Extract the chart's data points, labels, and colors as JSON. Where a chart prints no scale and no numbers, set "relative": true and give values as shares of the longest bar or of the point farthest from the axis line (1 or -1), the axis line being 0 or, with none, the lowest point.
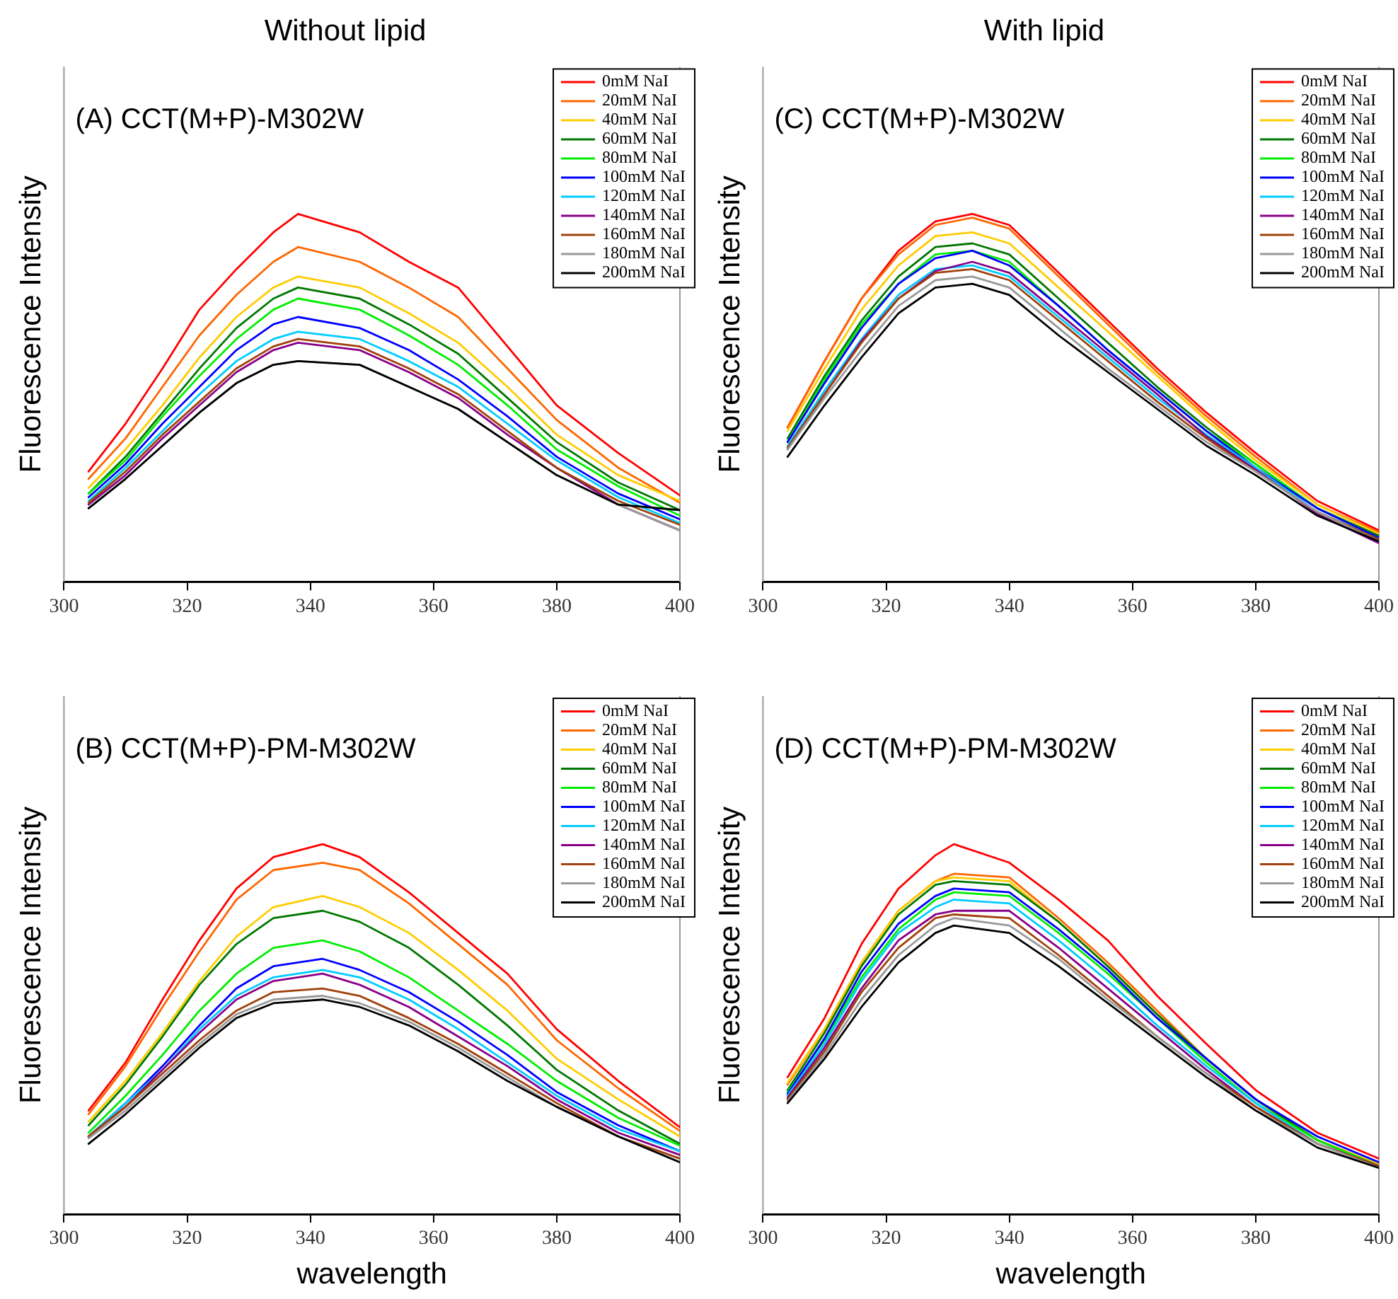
{
  "chart_data": [
    {
      "type": "line",
      "title": "Without lipid",
      "ylabel": "Fluorescence Intensity",
      "annotations": [
        "(A) CCT(M+P)-M302W"
      ],
      "relative": true,
      "tick_labels": "x",
      "legend": "top right",
      "xlim": [
        300,
        400
      ],
      "xticks": [
        300,
        320,
        340,
        360,
        380,
        400
      ],
      "x": [
        304,
        310,
        316,
        322,
        328,
        334,
        338,
        348,
        356,
        364,
        372,
        380,
        390,
        400
      ],
      "series": [
        {
          "name": "0mM NaI",
          "color": "#ff0000",
          "values": [
            0.3,
            0.43,
            0.58,
            0.74,
            0.85,
            0.95,
            1.0,
            0.95,
            0.87,
            0.8,
            0.64,
            0.48,
            0.35,
            0.235
          ]
        },
        {
          "name": "20mM NaI",
          "color": "#ff6600",
          "values": [
            0.28,
            0.39,
            0.53,
            0.67,
            0.78,
            0.87,
            0.91,
            0.87,
            0.8,
            0.72,
            0.58,
            0.44,
            0.31,
            0.215
          ]
        },
        {
          "name": "40mM NaI",
          "color": "#ffcc00",
          "values": [
            0.255,
            0.36,
            0.48,
            0.61,
            0.72,
            0.8,
            0.83,
            0.8,
            0.73,
            0.65,
            0.53,
            0.4,
            0.29,
            0.22
          ]
        },
        {
          "name": "60mM NaI",
          "color": "#007700",
          "values": [
            0.24,
            0.34,
            0.46,
            0.58,
            0.69,
            0.77,
            0.8,
            0.77,
            0.7,
            0.62,
            0.5,
            0.38,
            0.27,
            0.195
          ]
        },
        {
          "name": "80mM NaI",
          "color": "#00ee00",
          "values": [
            0.24,
            0.33,
            0.45,
            0.56,
            0.66,
            0.74,
            0.77,
            0.74,
            0.67,
            0.59,
            0.48,
            0.36,
            0.26,
            0.18
          ]
        },
        {
          "name": "100mM NaI",
          "color": "#0000ff",
          "values": [
            0.23,
            0.32,
            0.43,
            0.53,
            0.63,
            0.7,
            0.72,
            0.69,
            0.63,
            0.55,
            0.45,
            0.34,
            0.24,
            0.17
          ]
        },
        {
          "name": "120mM NaI",
          "color": "#00ccff",
          "values": [
            0.22,
            0.31,
            0.41,
            0.51,
            0.6,
            0.66,
            0.68,
            0.66,
            0.6,
            0.53,
            0.43,
            0.33,
            0.23,
            0.16
          ]
        },
        {
          "name": "140mM NaI",
          "color": "#880088",
          "values": [
            0.21,
            0.29,
            0.39,
            0.48,
            0.57,
            0.63,
            0.65,
            0.63,
            0.57,
            0.5,
            0.4,
            0.31,
            0.21,
            0.14
          ]
        },
        {
          "name": "160mM NaI",
          "color": "#a0400a",
          "values": [
            0.215,
            0.3,
            0.4,
            0.49,
            0.58,
            0.64,
            0.66,
            0.64,
            0.58,
            0.51,
            0.41,
            0.31,
            0.22,
            0.155
          ]
        },
        {
          "name": "180mM NaI",
          "color": "#999999",
          "values": [
            0.2,
            0.28,
            0.37,
            0.46,
            0.54,
            0.59,
            0.6,
            0.59,
            0.53,
            0.47,
            0.38,
            0.29,
            0.21,
            0.14
          ]
        },
        {
          "name": "200mM NaI",
          "color": "#000000",
          "values": [
            0.2,
            0.28,
            0.37,
            0.46,
            0.54,
            0.59,
            0.6,
            0.59,
            0.53,
            0.47,
            0.38,
            0.29,
            0.21,
            0.195
          ]
        }
      ]
    },
    {
      "type": "line",
      "title": "With lipid",
      "ylabel": "Fluorescence Intensity",
      "annotations": [
        "(C) CCT(M+P)-M302W"
      ],
      "relative": true,
      "tick_labels": "x",
      "legend": "top right",
      "xlim": [
        300,
        400
      ],
      "xticks": [
        300,
        320,
        340,
        360,
        380,
        400
      ],
      "x": [
        304,
        310,
        316,
        322,
        328,
        334,
        340,
        348,
        356,
        364,
        372,
        380,
        390,
        400
      ],
      "series": [
        {
          "name": "0mM NaI",
          "color": "#ff0000",
          "values": [
            0.42,
            0.6,
            0.77,
            0.9,
            0.98,
            1.0,
            0.97,
            0.84,
            0.71,
            0.58,
            0.46,
            0.35,
            0.22,
            0.14
          ]
        },
        {
          "name": "20mM NaI",
          "color": "#ff6600",
          "values": [
            0.42,
            0.6,
            0.77,
            0.89,
            0.97,
            0.99,
            0.96,
            0.83,
            0.7,
            0.57,
            0.45,
            0.34,
            0.21,
            0.135
          ]
        },
        {
          "name": "40mM NaI",
          "color": "#ffcc00",
          "values": [
            0.41,
            0.58,
            0.74,
            0.86,
            0.94,
            0.95,
            0.92,
            0.8,
            0.68,
            0.56,
            0.44,
            0.33,
            0.21,
            0.13
          ]
        },
        {
          "name": "60mM NaI",
          "color": "#007700",
          "values": [
            0.39,
            0.56,
            0.71,
            0.83,
            0.91,
            0.92,
            0.89,
            0.77,
            0.65,
            0.53,
            0.42,
            0.32,
            0.2,
            0.125
          ]
        },
        {
          "name": "80mM NaI",
          "color": "#00ee00",
          "values": [
            0.38,
            0.55,
            0.7,
            0.81,
            0.89,
            0.9,
            0.87,
            0.75,
            0.63,
            0.52,
            0.41,
            0.32,
            0.2,
            0.12
          ]
        },
        {
          "name": "100mM NaI",
          "color": "#0000ff",
          "values": [
            0.38,
            0.54,
            0.69,
            0.81,
            0.88,
            0.9,
            0.86,
            0.75,
            0.63,
            0.52,
            0.41,
            0.31,
            0.2,
            0.12
          ]
        },
        {
          "name": "120mM NaI",
          "color": "#00ccff",
          "values": [
            0.37,
            0.52,
            0.66,
            0.78,
            0.85,
            0.86,
            0.83,
            0.72,
            0.61,
            0.5,
            0.4,
            0.31,
            0.19,
            0.115
          ]
        },
        {
          "name": "140mM NaI",
          "color": "#880088",
          "values": [
            0.36,
            0.51,
            0.655,
            0.77,
            0.845,
            0.87,
            0.84,
            0.73,
            0.62,
            0.51,
            0.395,
            0.305,
            0.185,
            0.105
          ]
        },
        {
          "name": "160mM NaI",
          "color": "#a0400a",
          "values": [
            0.365,
            0.51,
            0.65,
            0.77,
            0.84,
            0.85,
            0.82,
            0.71,
            0.6,
            0.49,
            0.39,
            0.3,
            0.19,
            0.115
          ]
        },
        {
          "name": "180mM NaI",
          "color": "#999999",
          "values": [
            0.36,
            0.5,
            0.63,
            0.75,
            0.82,
            0.83,
            0.8,
            0.69,
            0.58,
            0.48,
            0.38,
            0.3,
            0.19,
            0.11
          ]
        },
        {
          "name": "200mM NaI",
          "color": "#000000",
          "values": [
            0.34,
            0.48,
            0.61,
            0.73,
            0.8,
            0.81,
            0.78,
            0.67,
            0.57,
            0.47,
            0.37,
            0.29,
            0.18,
            0.11
          ]
        }
      ]
    },
    {
      "type": "line",
      "xlabel": "wavelength",
      "ylabel": "Fluorescence Intensity",
      "annotations": [
        "(B) CCT(M+P)-PM-M302W"
      ],
      "relative": true,
      "tick_labels": "x",
      "legend": "top right",
      "xlim": [
        300,
        400
      ],
      "xticks": [
        300,
        320,
        340,
        360,
        380,
        400
      ],
      "x": [
        304,
        310,
        316,
        322,
        328,
        334,
        342,
        348,
        356,
        364,
        372,
        380,
        390,
        400
      ],
      "series": [
        {
          "name": "0mM NaI",
          "color": "#ff0000",
          "values": [
            0.28,
            0.41,
            0.58,
            0.74,
            0.88,
            0.965,
            1.0,
            0.965,
            0.87,
            0.76,
            0.65,
            0.5,
            0.36,
            0.235
          ]
        },
        {
          "name": "20mM NaI",
          "color": "#ff6600",
          "values": [
            0.27,
            0.4,
            0.56,
            0.71,
            0.85,
            0.93,
            0.95,
            0.93,
            0.84,
            0.73,
            0.62,
            0.47,
            0.34,
            0.225
          ]
        },
        {
          "name": "40mM NaI",
          "color": "#ffcc00",
          "values": [
            0.25,
            0.36,
            0.49,
            0.63,
            0.75,
            0.83,
            0.86,
            0.83,
            0.76,
            0.66,
            0.55,
            0.42,
            0.31,
            0.21
          ]
        },
        {
          "name": "60mM NaI",
          "color": "#007700",
          "values": [
            0.24,
            0.35,
            0.48,
            0.62,
            0.73,
            0.8,
            0.82,
            0.79,
            0.72,
            0.62,
            0.51,
            0.39,
            0.28,
            0.19
          ]
        },
        {
          "name": "80mM NaI",
          "color": "#00ee00",
          "values": [
            0.22,
            0.32,
            0.43,
            0.55,
            0.65,
            0.72,
            0.74,
            0.71,
            0.64,
            0.55,
            0.46,
            0.36,
            0.26,
            0.185
          ]
        },
        {
          "name": "100mM NaI",
          "color": "#0000ff",
          "values": [
            0.21,
            0.3,
            0.4,
            0.51,
            0.61,
            0.67,
            0.69,
            0.66,
            0.6,
            0.52,
            0.43,
            0.33,
            0.24,
            0.17
          ]
        },
        {
          "name": "120mM NaI",
          "color": "#00ccff",
          "values": [
            0.21,
            0.3,
            0.39,
            0.5,
            0.59,
            0.64,
            0.66,
            0.64,
            0.58,
            0.5,
            0.41,
            0.32,
            0.23,
            0.17
          ]
        },
        {
          "name": "140mM NaI",
          "color": "#880088",
          "values": [
            0.21,
            0.29,
            0.39,
            0.49,
            0.58,
            0.63,
            0.65,
            0.62,
            0.56,
            0.48,
            0.4,
            0.31,
            0.22,
            0.16
          ]
        },
        {
          "name": "160mM NaI",
          "color": "#a0400a",
          "values": [
            0.21,
            0.29,
            0.38,
            0.47,
            0.55,
            0.6,
            0.61,
            0.59,
            0.53,
            0.46,
            0.38,
            0.3,
            0.21,
            0.15
          ]
        },
        {
          "name": "180mM NaI",
          "color": "#999999",
          "values": [
            0.205,
            0.28,
            0.37,
            0.46,
            0.54,
            0.58,
            0.59,
            0.57,
            0.52,
            0.45,
            0.37,
            0.29,
            0.21,
            0.14
          ]
        },
        {
          "name": "200mM NaI",
          "color": "#000000",
          "values": [
            0.19,
            0.27,
            0.36,
            0.45,
            0.53,
            0.57,
            0.58,
            0.56,
            0.51,
            0.44,
            0.36,
            0.29,
            0.21,
            0.14
          ]
        }
      ]
    },
    {
      "type": "line",
      "xlabel": "wavelength",
      "ylabel": "Fluorescence Intensity",
      "annotations": [
        "(D) CCT(M+P)-PM-M302W"
      ],
      "relative": true,
      "tick_labels": "x",
      "legend": "top right",
      "xlim": [
        300,
        400
      ],
      "xticks": [
        300,
        320,
        340,
        360,
        380,
        400
      ],
      "x": [
        304,
        310,
        316,
        322,
        328,
        331,
        340,
        348,
        356,
        364,
        372,
        380,
        390,
        400
      ],
      "series": [
        {
          "name": "0mM NaI",
          "color": "#ff0000",
          "values": [
            0.37,
            0.53,
            0.73,
            0.88,
            0.97,
            1.0,
            0.95,
            0.85,
            0.74,
            0.59,
            0.46,
            0.335,
            0.22,
            0.15
          ]
        },
        {
          "name": "20mM NaI",
          "color": "#ff6600",
          "values": [
            0.35,
            0.5,
            0.68,
            0.82,
            0.9,
            0.92,
            0.91,
            0.8,
            0.68,
            0.55,
            0.42,
            0.31,
            0.2,
            0.135
          ]
        },
        {
          "name": "40mM NaI",
          "color": "#ffcc00",
          "values": [
            0.355,
            0.5,
            0.68,
            0.82,
            0.9,
            0.91,
            0.9,
            0.79,
            0.67,
            0.54,
            0.42,
            0.31,
            0.2,
            0.135
          ]
        },
        {
          "name": "60mM NaI",
          "color": "#007700",
          "values": [
            0.335,
            0.49,
            0.67,
            0.81,
            0.89,
            0.9,
            0.89,
            0.79,
            0.67,
            0.54,
            0.42,
            0.31,
            0.2,
            0.13
          ]
        },
        {
          "name": "80mM NaI",
          "color": "#00ee00",
          "values": [
            0.33,
            0.47,
            0.64,
            0.77,
            0.85,
            0.87,
            0.86,
            0.76,
            0.65,
            0.53,
            0.41,
            0.3,
            0.2,
            0.13
          ]
        },
        {
          "name": "100mM NaI",
          "color": "#0000ff",
          "values": [
            0.325,
            0.475,
            0.655,
            0.785,
            0.86,
            0.88,
            0.87,
            0.77,
            0.66,
            0.53,
            0.42,
            0.31,
            0.21,
            0.14
          ]
        },
        {
          "name": "120mM NaI",
          "color": "#00ccff",
          "values": [
            0.32,
            0.46,
            0.63,
            0.76,
            0.83,
            0.85,
            0.84,
            0.74,
            0.63,
            0.51,
            0.4,
            0.3,
            0.19,
            0.13
          ]
        },
        {
          "name": "140mM NaI",
          "color": "#880088",
          "values": [
            0.315,
            0.45,
            0.61,
            0.74,
            0.81,
            0.82,
            0.82,
            0.72,
            0.61,
            0.5,
            0.39,
            0.29,
            0.19,
            0.13
          ]
        },
        {
          "name": "160mM NaI",
          "color": "#a0400a",
          "values": [
            0.31,
            0.44,
            0.6,
            0.72,
            0.8,
            0.81,
            0.8,
            0.7,
            0.59,
            0.48,
            0.38,
            0.29,
            0.19,
            0.13
          ]
        },
        {
          "name": "180mM NaI",
          "color": "#999999",
          "values": [
            0.305,
            0.43,
            0.58,
            0.7,
            0.78,
            0.8,
            0.78,
            0.69,
            0.58,
            0.48,
            0.38,
            0.28,
            0.19,
            0.125
          ]
        },
        {
          "name": "200mM NaI",
          "color": "#000000",
          "values": [
            0.3,
            0.42,
            0.56,
            0.68,
            0.76,
            0.78,
            0.76,
            0.67,
            0.57,
            0.47,
            0.37,
            0.28,
            0.18,
            0.125
          ]
        }
      ]
    }
  ]
}
